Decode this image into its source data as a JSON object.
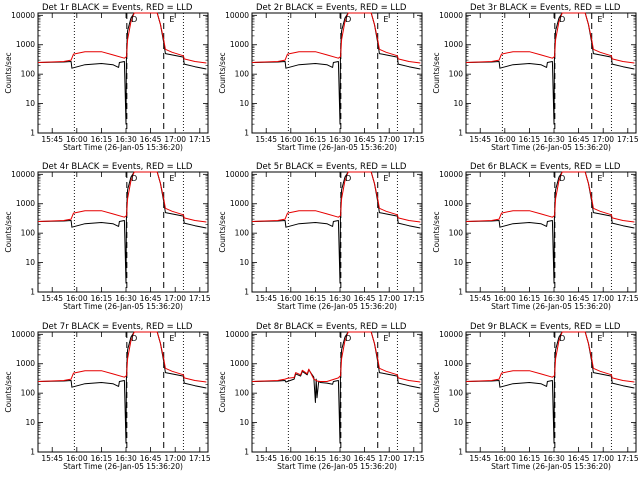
{
  "chart_data": {
    "type": "line",
    "layout": "3x3 grid",
    "shared": {
      "ylabel": "Counts/sec",
      "xlabel": "Start Time (26-Jan-05 15:36:20)",
      "y_scale": "log",
      "ylim": [
        1,
        12000
      ],
      "y_ticks": [
        1,
        10,
        100,
        1000,
        10000
      ],
      "y_tick_labels": [
        "1",
        "10",
        "100",
        "1000",
        "10000"
      ],
      "xlim": [
        "15:36:20",
        "17:20:00"
      ],
      "x_ticks": [
        "15:45",
        "16:00",
        "16:15",
        "16:30",
        "16:45",
        "17:00",
        "17:15"
      ],
      "vlines_dotted": [
        "15:58:30",
        "17:05:00"
      ],
      "vlines_dashed": [
        "16:30:30",
        "16:53:00"
      ],
      "marker_labels": [
        {
          "text": "D",
          "time": "16:35:00"
        },
        {
          "text": "E",
          "time": "16:58:00"
        }
      ],
      "series_colors": {
        "events": "#000000",
        "lld": "#e60000"
      },
      "grid": false
    },
    "panels": [
      {
        "title": "Det 1r  BLACK = Events, RED = LLD",
        "variant": "normal"
      },
      {
        "title": "Det 2r  BLACK = Events, RED = LLD",
        "variant": "normal"
      },
      {
        "title": "Det 3r  BLACK = Events, RED = LLD",
        "variant": "normal"
      },
      {
        "title": "Det 4r  BLACK = Events, RED = LLD",
        "variant": "normal"
      },
      {
        "title": "Det 5r  BLACK = Events, RED = LLD",
        "variant": "normal"
      },
      {
        "title": "Det 6r  BLACK = Events, RED = LLD",
        "variant": "normal"
      },
      {
        "title": "Det 7r  BLACK = Events, RED = LLD",
        "variant": "normal"
      },
      {
        "title": "Det 8r  BLACK = Events, RED = LLD",
        "variant": "noisy"
      },
      {
        "title": "Det 9r  BLACK = Events, RED = LLD",
        "variant": "normal"
      }
    ],
    "series_profiles": {
      "normal": {
        "events": {
          "t": [
            "15:36:20",
            "15:52:00",
            "15:56:30",
            "15:57:00",
            "16:05:00",
            "16:15:00",
            "16:22:00",
            "16:25:30",
            "16:26:00",
            "16:29:00",
            "16:30:00",
            "16:30:15",
            "16:30:40",
            "16:31:00",
            "16:33:00",
            "16:35:00",
            "16:36:00",
            "16:48:00",
            "16:49:00",
            "16:51:00",
            "16:53:00",
            "16:54:00",
            "16:58:00",
            "17:05:00",
            "17:05:30",
            "17:12:00",
            "17:19:00"
          ],
          "v": [
            250,
            260,
            270,
            160,
            210,
            230,
            210,
            170,
            250,
            270,
            2,
            300,
            1500,
            3000,
            8000,
            12000,
            12000,
            12000,
            12000,
            5000,
            1200,
            500,
            450,
            380,
            220,
            180,
            150
          ]
        },
        "lld": {
          "t": [
            "15:36:20",
            "15:52:00",
            "15:56:30",
            "15:58:00",
            "16:05:00",
            "16:15:00",
            "16:22:00",
            "16:29:00",
            "16:30:20",
            "16:31:00",
            "16:33:00",
            "16:35:00",
            "16:36:00",
            "16:48:00",
            "16:49:00",
            "16:51:00",
            "16:53:00",
            "16:54:00",
            "16:58:00",
            "17:05:00",
            "17:05:30",
            "17:12:00",
            "17:19:00"
          ],
          "v": [
            250,
            270,
            300,
            480,
            580,
            580,
            450,
            350,
            400,
            1500,
            6000,
            12000,
            12000,
            12000,
            12000,
            5000,
            1500,
            700,
            560,
            420,
            330,
            270,
            240
          ]
        }
      },
      "noisy": {
        "events": {
          "t": [
            "15:36:20",
            "15:52:00",
            "15:56:30",
            "15:57:00",
            "16:02:00",
            "16:03:00",
            "16:06:00",
            "16:07:00",
            "16:10:00",
            "16:11:00",
            "16:14:00",
            "16:15:00",
            "16:15:30",
            "16:16:00",
            "16:17:00",
            "16:18:00",
            "16:22:00",
            "16:25:30",
            "16:26:00",
            "16:29:00",
            "16:30:00",
            "16:30:15",
            "16:30:40",
            "16:31:00",
            "16:33:00",
            "16:35:00",
            "16:36:00",
            "16:48:00",
            "16:49:00",
            "16:51:00",
            "16:53:00",
            "16:54:00",
            "16:58:00",
            "17:05:00",
            "17:05:30",
            "17:12:00",
            "17:19:00"
          ],
          "v": [
            250,
            260,
            270,
            240,
            300,
            450,
            380,
            550,
            420,
            620,
            350,
            48,
            300,
            70,
            250,
            230,
            220,
            200,
            250,
            270,
            2,
            300,
            1500,
            3000,
            8000,
            12000,
            12000,
            12000,
            12000,
            5000,
            1200,
            500,
            450,
            380,
            220,
            180,
            150
          ]
        },
        "lld": {
          "t": [
            "15:36:20",
            "15:52:00",
            "15:56:30",
            "15:58:00",
            "16:02:00",
            "16:03:00",
            "16:06:00",
            "16:07:00",
            "16:10:00",
            "16:11:00",
            "16:14:00",
            "16:16:00",
            "16:18:00",
            "16:22:00",
            "16:29:00",
            "16:30:20",
            "16:31:00",
            "16:33:00",
            "16:35:00",
            "16:36:00",
            "16:48:00",
            "16:49:00",
            "16:51:00",
            "16:53:00",
            "16:54:00",
            "16:58:00",
            "17:05:00",
            "17:05:30",
            "17:12:00",
            "17:19:00"
          ],
          "v": [
            250,
            270,
            300,
            320,
            340,
            500,
            420,
            600,
            460,
            660,
            300,
            260,
            250,
            250,
            330,
            400,
            1500,
            6000,
            12000,
            12000,
            12000,
            12000,
            5000,
            1500,
            700,
            560,
            420,
            330,
            270,
            240
          ]
        }
      }
    }
  }
}
